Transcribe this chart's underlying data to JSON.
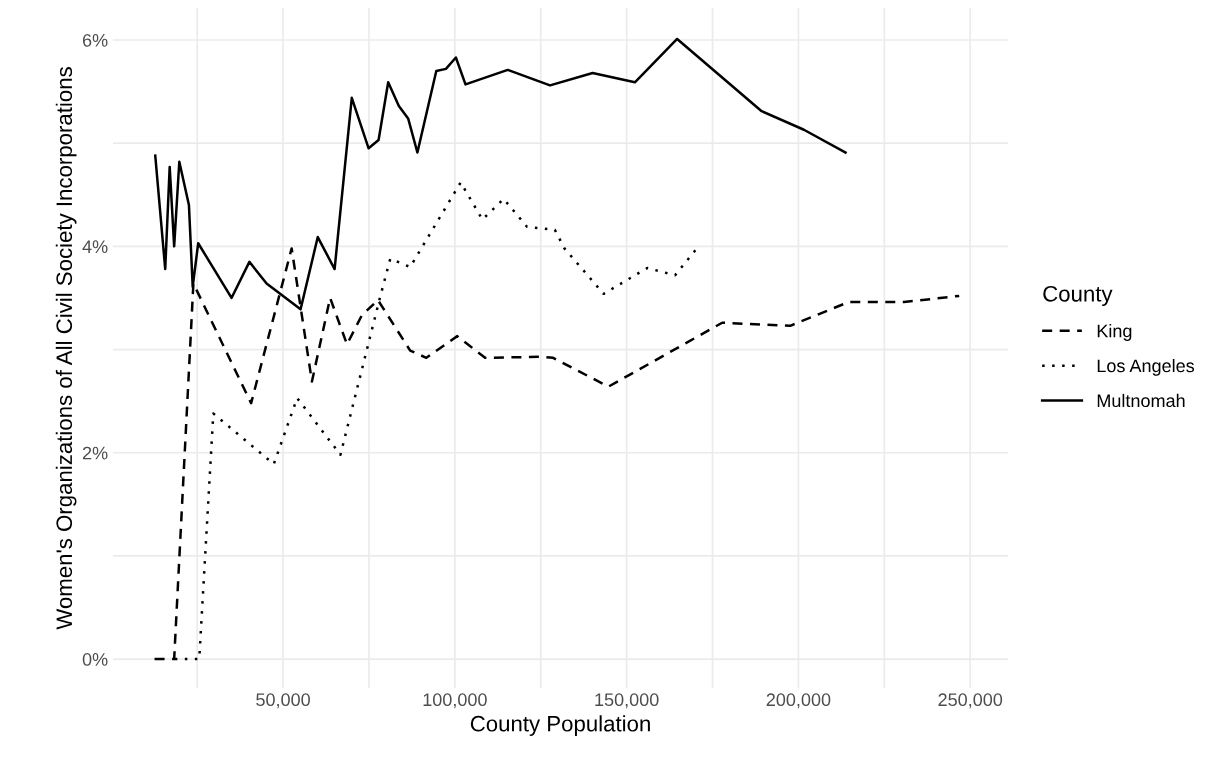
{
  "chart_data": {
    "type": "line",
    "xlabel": "County Population",
    "ylabel": "Women's Organizations of All Civil Society Incorporations",
    "legend_title": "County",
    "legend": "right",
    "grid": true,
    "xlim": [
      500,
      261000
    ],
    "ylim": [
      -0.28,
      6.31
    ],
    "xticks": [
      {
        "value": 25000,
        "label": null
      },
      {
        "value": 50000,
        "label": "50,000"
      },
      {
        "value": 75000,
        "label": null
      },
      {
        "value": 100000,
        "label": "100,000"
      },
      {
        "value": 125000,
        "label": null
      },
      {
        "value": 150000,
        "label": "150,000"
      },
      {
        "value": 175000,
        "label": null
      },
      {
        "value": 200000,
        "label": "200,000"
      },
      {
        "value": 225000,
        "label": null
      },
      {
        "value": 250000,
        "label": "250,000"
      }
    ],
    "yticks": [
      {
        "value": 0,
        "label": "0%"
      },
      {
        "value": 1,
        "label": null
      },
      {
        "value": 2,
        "label": "2%"
      },
      {
        "value": 3,
        "label": null
      },
      {
        "value": 4,
        "label": "4%"
      },
      {
        "value": 5,
        "label": null
      },
      {
        "value": 6,
        "label": "6%"
      }
    ],
    "series": [
      {
        "name": "King",
        "color": "#000000",
        "line_style": "dashed",
        "x": [
          12600,
          16100,
          18300,
          23900,
          40700,
          52500,
          58400,
          63700,
          68600,
          72900,
          77600,
          87000,
          91700,
          100700,
          108800,
          125300,
          128600,
          144700,
          177800,
          197600,
          214600,
          230700,
          246800
        ],
        "values": [
          0,
          0,
          0,
          3.64,
          2.48,
          3.98,
          2.69,
          3.5,
          3.05,
          3.33,
          3.48,
          2.99,
          2.92,
          3.13,
          2.92,
          2.93,
          2.92,
          2.64,
          3.26,
          3.23,
          3.46,
          3.46,
          3.52
        ]
      },
      {
        "name": "Los Angeles",
        "color": "#000000",
        "line_style": "dotted",
        "x": [
          18500,
          25600,
          29700,
          47300,
          54100,
          66700,
          78100,
          81200,
          87000,
          101700,
          108000,
          114200,
          121000,
          129100,
          131900,
          143300,
          156000,
          164100,
          170200
        ],
        "values": [
          0,
          0,
          2.38,
          1.89,
          2.53,
          1.98,
          3.49,
          3.88,
          3.8,
          4.62,
          4.26,
          4.46,
          4.19,
          4.16,
          3.98,
          3.54,
          3.79,
          3.72,
          3.97
        ]
      },
      {
        "name": "Multnomah",
        "color": "#000000",
        "line_style": "solid",
        "x": [
          12800,
          15700,
          17000,
          18300,
          19800,
          22600,
          23700,
          25300,
          35000,
          40200,
          45200,
          55100,
          60100,
          65000,
          70000,
          74900,
          77800,
          80600,
          83700,
          86400,
          89100,
          94600,
          97400,
          100300,
          103100,
          115400,
          127700,
          140100,
          152400,
          164700,
          189300,
          201600,
          213700
        ],
        "values": [
          4.88,
          3.78,
          4.77,
          4.0,
          4.82,
          4.4,
          3.61,
          4.03,
          3.5,
          3.85,
          3.64,
          3.39,
          4.09,
          3.78,
          5.44,
          4.95,
          5.03,
          5.59,
          5.36,
          5.24,
          4.91,
          5.7,
          5.72,
          5.83,
          5.57,
          5.71,
          5.56,
          5.68,
          5.59,
          6.01,
          5.31,
          5.13,
          4.91
        ]
      }
    ]
  }
}
